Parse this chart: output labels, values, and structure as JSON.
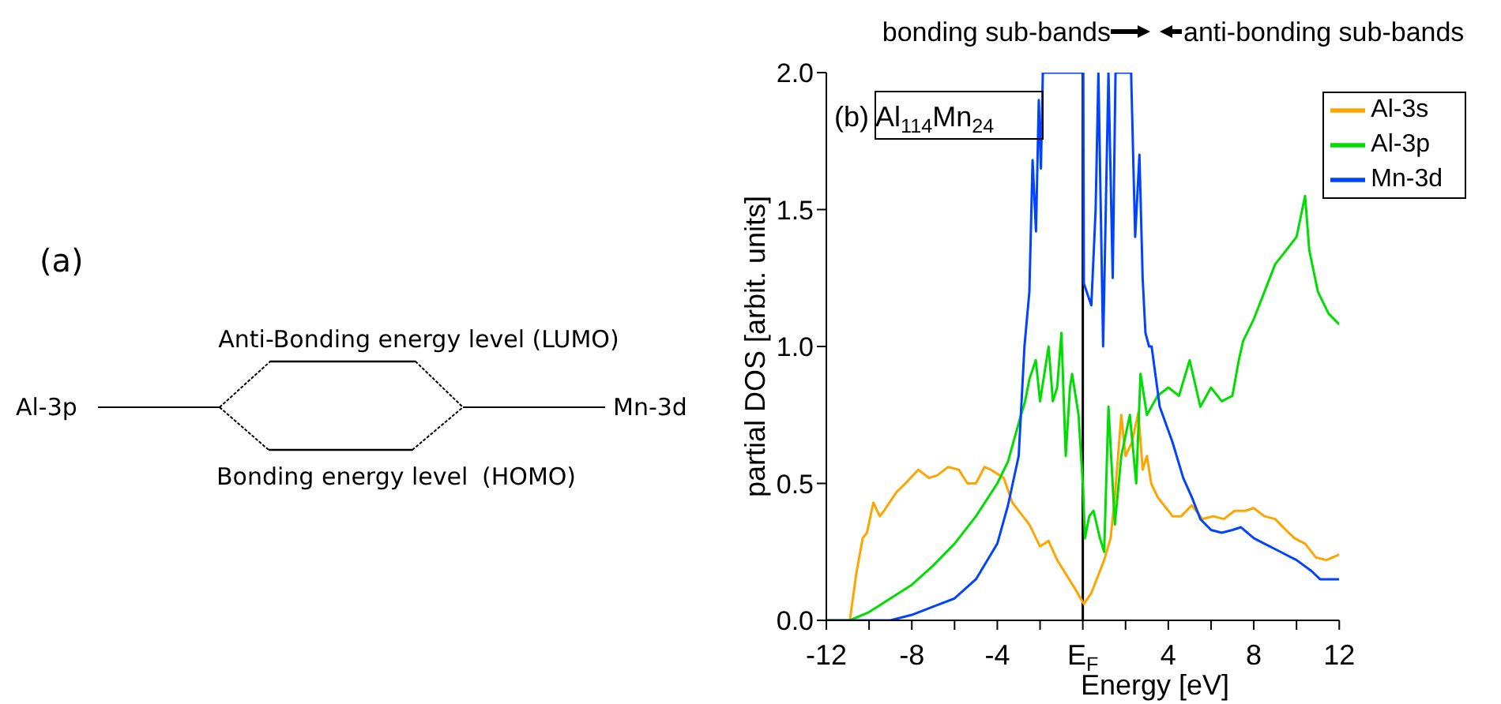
{
  "chart_data": [
    {
      "type": "other",
      "annotations": [
        "(a)",
        "Al-3p",
        "Mn-3d",
        "Anti-Bonding energy level (LUMO)",
        "Bonding energy level",
        "(HOMO)"
      ]
    },
    {
      "type": "line",
      "xlabel": "Energy [eV]",
      "ylabel": "partial DOS [arbit. units]",
      "annotations": [
        "(b) Al$_{114}$Mn$_{24}$",
        "bonding sub-bands",
        "anti-bonding sub-bands"
      ],
      "xlim": [
        -12,
        12
      ],
      "ylim": [
        0,
        2
      ],
      "xticks": [
        -12,
        {
          "value": -10,
          "label": null
        },
        -8,
        {
          "value": -6,
          "label": null
        },
        -4,
        {
          "value": -2,
          "label": null
        },
        {
          "value": 0,
          "label": "E$_{F}$"
        },
        {
          "value": 2,
          "label": null
        },
        4,
        {
          "value": 6,
          "label": null
        },
        8,
        {
          "value": 10,
          "label": null
        },
        12
      ],
      "yticks": [
        {
          "value": 0,
          "label": "0.0"
        },
        {
          "value": 0.5,
          "label": "0.5"
        },
        {
          "value": 1,
          "label": "1.0"
        },
        {
          "value": 1.5,
          "label": "1.5"
        },
        {
          "value": 2,
          "label": "2.0"
        }
      ],
      "ref_lines": [
        {
          "axis": "x",
          "value": 0,
          "color": "#000000"
        }
      ],
      "legend": "top right",
      "marker": "none",
      "line_style": "solid",
      "series": [
        {
          "name": "Al-3s",
          "color": "#ffa500",
          "x": [
            -12,
            -10.9,
            -10.6,
            -10.3,
            -10.1,
            -9.8,
            -9.5,
            -9.3,
            -8.7,
            -8.3,
            -7.7,
            -7.2,
            -6.8,
            -6.3,
            -5.8,
            -5.4,
            -5.0,
            -4.6,
            -4.3,
            -3.7,
            -3.3,
            -3.0,
            -2.5,
            -2.0,
            -1.6,
            -1.2,
            -0.8,
            -0.4,
            0.05,
            0.4,
            0.7,
            1.0,
            1.3,
            1.5,
            1.8,
            2.0,
            2.3,
            2.6,
            2.8,
            3.0,
            3.2,
            3.5,
            3.8,
            4.2,
            4.6,
            5.1,
            5.6,
            6.1,
            6.6,
            7.1,
            7.6,
            8.0,
            8.5,
            9.0,
            9.5,
            9.9,
            10.4,
            10.9,
            11.4,
            12
          ],
          "values": [
            0,
            0,
            0.17,
            0.3,
            0.32,
            0.43,
            0.38,
            0.4,
            0.47,
            0.5,
            0.55,
            0.52,
            0.53,
            0.56,
            0.55,
            0.5,
            0.5,
            0.56,
            0.55,
            0.52,
            0.43,
            0.4,
            0.35,
            0.27,
            0.29,
            0.22,
            0.17,
            0.12,
            0.06,
            0.1,
            0.16,
            0.22,
            0.3,
            0.45,
            0.75,
            0.6,
            0.65,
            0.76,
            0.55,
            0.6,
            0.5,
            0.45,
            0.42,
            0.38,
            0.38,
            0.42,
            0.37,
            0.38,
            0.37,
            0.4,
            0.4,
            0.41,
            0.38,
            0.37,
            0.33,
            0.3,
            0.28,
            0.23,
            0.22,
            0.24
          ]
        },
        {
          "name": "Al-3p",
          "color": "#00dd00",
          "x": [
            -12,
            -10.9,
            -10,
            -9,
            -8,
            -7,
            -6,
            -5,
            -4,
            -3.5,
            -3,
            -2.7,
            -2.5,
            -2.2,
            -2.0,
            -1.8,
            -1.6,
            -1.4,
            -1.2,
            -1.0,
            -0.8,
            -0.6,
            -0.5,
            -0.2,
            0,
            0.1,
            0.3,
            0.5,
            0.8,
            1.0,
            1.2,
            1.5,
            1.8,
            2.2,
            2.5,
            2.7,
            3.0,
            3.5,
            4.0,
            4.5,
            5.0,
            5.5,
            6.0,
            6.5,
            7.0,
            7.3,
            7.5,
            8.0,
            8.5,
            9.0,
            9.5,
            10.0,
            10.4,
            10.6,
            11.0,
            11.5,
            12
          ],
          "values": [
            0,
            0,
            0.03,
            0.08,
            0.13,
            0.2,
            0.28,
            0.38,
            0.5,
            0.58,
            0.72,
            0.8,
            0.88,
            0.95,
            0.8,
            0.9,
            1.0,
            0.8,
            0.85,
            1.05,
            0.6,
            0.85,
            0.9,
            0.75,
            0.5,
            0.3,
            0.38,
            0.4,
            0.3,
            0.25,
            0.78,
            0.35,
            0.6,
            0.75,
            0.5,
            0.9,
            0.75,
            0.82,
            0.85,
            0.82,
            0.95,
            0.78,
            0.85,
            0.8,
            0.82,
            0.95,
            1.02,
            1.1,
            1.2,
            1.3,
            1.35,
            1.4,
            1.55,
            1.35,
            1.2,
            1.12,
            1.08
          ]
        },
        {
          "name": "Mn-3d",
          "color": "#0044ff",
          "x": [
            -12,
            -9,
            -8,
            -7,
            -6,
            -5,
            -4,
            -3.5,
            -3,
            -2.73,
            -2.5,
            -2.35,
            -2.19,
            -2.06,
            -1.96,
            -1.87,
            0.02,
            0.05,
            0.4,
            0.6,
            0.73,
            0.95,
            1.2,
            1.4,
            1.53,
            2.26,
            2.45,
            2.65,
            2.8,
            2.93,
            3.1,
            3.22,
            3.6,
            4.2,
            4.7,
            5.1,
            5.5,
            6.0,
            6.5,
            7.0,
            7.4,
            8.0,
            8.5,
            9.0,
            9.5,
            10.0,
            10.7,
            11.1,
            12
          ],
          "values": [
            0,
            0,
            0.02,
            0.05,
            0.08,
            0.15,
            0.28,
            0.42,
            0.6,
            1.0,
            1.2,
            1.68,
            1.42,
            1.9,
            1.65,
            2.0,
            2.0,
            1.23,
            1.15,
            1.5,
            2.0,
            1.0,
            2.0,
            1.25,
            2.0,
            2.0,
            1.4,
            1.7,
            1.25,
            1.05,
            1.0,
            1.0,
            0.78,
            0.65,
            0.52,
            0.45,
            0.37,
            0.33,
            0.32,
            0.33,
            0.34,
            0.3,
            0.28,
            0.26,
            0.24,
            0.22,
            0.18,
            0.15,
            0.15
          ]
        }
      ]
    }
  ]
}
